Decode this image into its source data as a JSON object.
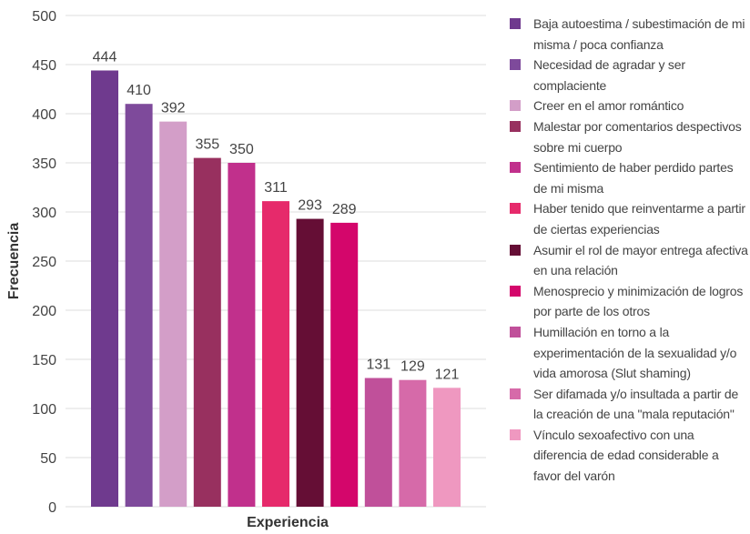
{
  "chart_data": {
    "type": "bar",
    "x_label": "Experiencia",
    "y_label": "Frecuencia",
    "categories": [
      "Baja autoestima / subestimación de mi misma / poca confianza",
      "Necesidad de agradar y ser complaciente",
      "Creer en el amor romántico",
      "Malestar por comentarios despectivos sobre mi cuerpo",
      "Sentimiento de haber perdido partes de mi misma",
      "Haber tenido que reinventarme a partir de ciertas experiencias",
      "Asumir el rol de mayor entrega afectiva en una relación",
      "Menosprecio y minimización de logros por parte de los otros",
      "Humillación en torno a la experimentación de la sexualidad y/o vida amorosa (Slut shaming)",
      "Ser difamada y/o insultada a partir de la creación de una \"mala reputación\"",
      "Vínculo sexoafectivo con una diferencia de edad considerable a favor del varón"
    ],
    "values": [
      444,
      410,
      392,
      355,
      350,
      311,
      293,
      289,
      131,
      129,
      121
    ],
    "colors": [
      "#6f3a8e",
      "#7e4a9b",
      "#d39ec8",
      "#98305f",
      "#c1308c",
      "#e62a6b",
      "#650e35",
      "#d4066b",
      "#c0509a",
      "#d66aa9",
      "#ef98c0"
    ],
    "ylim": [
      0,
      500
    ],
    "yticks": [
      0,
      50,
      100,
      150,
      200,
      250,
      300,
      350,
      400,
      450,
      500
    ],
    "grid": true
  }
}
